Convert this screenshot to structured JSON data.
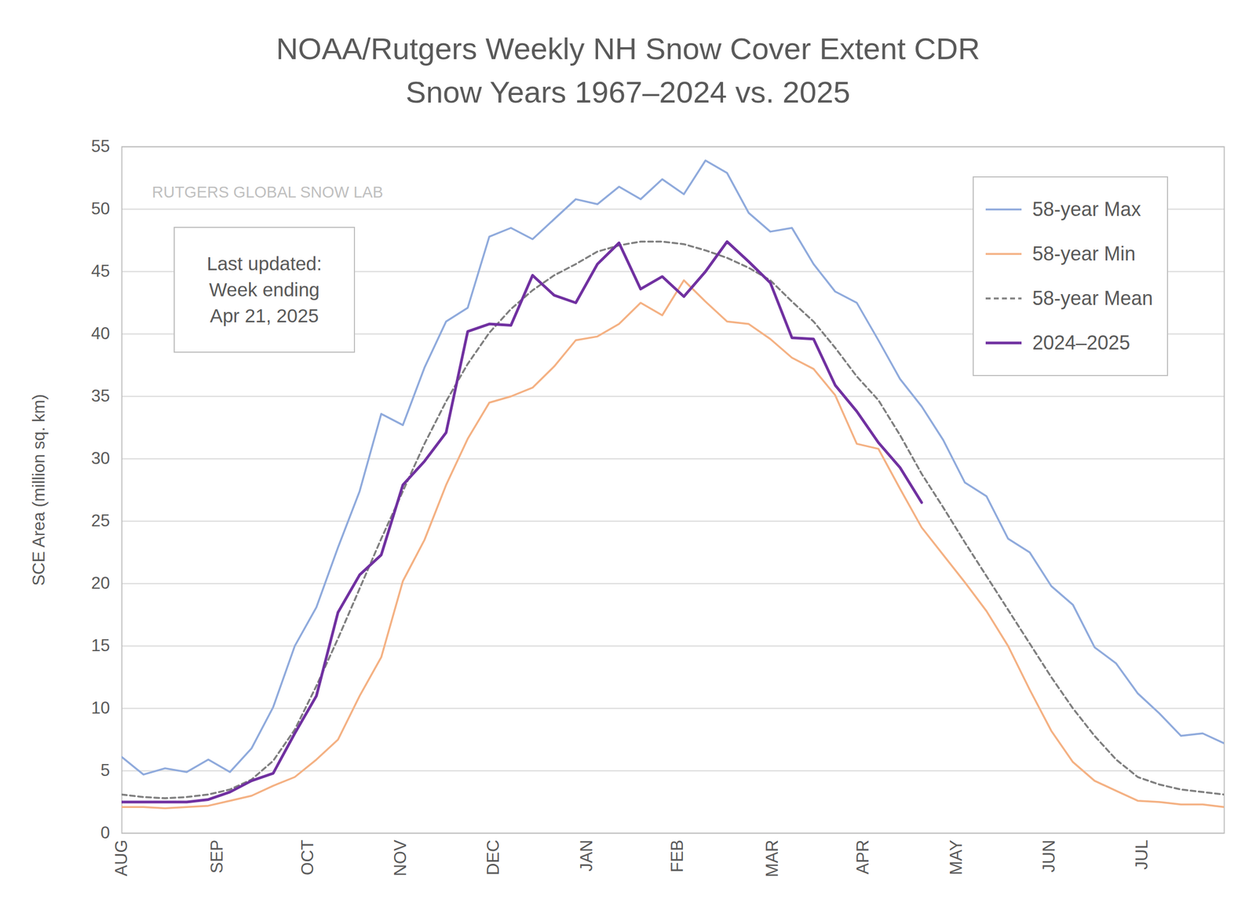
{
  "chart_data": {
    "type": "line",
    "title": "NOAA/Rutgers Weekly NH Snow Cover Extent CDR",
    "subtitle": "Snow Years 1967–2024 vs. 2025",
    "y_label": "SCE Area (million sq. km)",
    "annotations": [
      {
        "text": [
          "RUTGERS GLOBAL SNOW LAB"
        ]
      },
      {
        "text": [
          "Last updated:",
          "Week ending",
          "Apr 21, 2025"
        ]
      }
    ],
    "x": [
      0,
      1,
      2,
      3,
      4,
      5,
      6,
      7,
      8,
      9,
      10,
      11,
      12,
      13,
      14,
      15,
      16,
      17,
      18,
      19,
      20,
      21,
      22,
      23,
      24,
      25,
      26,
      27,
      28,
      29,
      30,
      31,
      32,
      33,
      34,
      35,
      36,
      37,
      38,
      39,
      40,
      41,
      42,
      43,
      44,
      45,
      46,
      47,
      48,
      49,
      50,
      51
    ],
    "xlim": [
      0,
      51
    ],
    "xticks": [
      {
        "value": 0,
        "label": "AUG"
      },
      {
        "value": 4.4,
        "label": "SEP"
      },
      {
        "value": 8.6,
        "label": "OCT"
      },
      {
        "value": 12.9,
        "label": "NOV"
      },
      {
        "value": 17.2,
        "label": "DEC"
      },
      {
        "value": 21.5,
        "label": "JAN"
      },
      {
        "value": 25.7,
        "label": "FEB"
      },
      {
        "value": 30.1,
        "label": "MAR"
      },
      {
        "value": 34.3,
        "label": "APR"
      },
      {
        "value": 38.6,
        "label": "MAY"
      },
      {
        "value": 42.9,
        "label": "JUN"
      },
      {
        "value": 47.2,
        "label": "JUL"
      }
    ],
    "ylim": [
      0,
      55
    ],
    "yticks": [
      0,
      5,
      10,
      15,
      20,
      25,
      30,
      35,
      40,
      45,
      50,
      55
    ],
    "grid": "y",
    "legend": "top-right",
    "series": [
      {
        "name": "58-year Max",
        "color": "#8faadc",
        "line_style": "solid",
        "values": [
          6.1,
          4.7,
          5.2,
          4.9,
          5.9,
          4.9,
          6.8,
          10.1,
          15.0,
          18.1,
          22.9,
          27.4,
          33.6,
          32.7,
          37.3,
          41.0,
          42.1,
          47.8,
          48.5,
          47.6,
          49.2,
          50.8,
          50.4,
          51.8,
          50.8,
          52.4,
          51.2,
          53.9,
          52.9,
          49.7,
          48.2,
          48.5,
          45.6,
          43.4,
          42.5,
          39.5,
          36.4,
          34.2,
          31.5,
          28.1,
          27.0,
          23.6,
          22.5,
          19.8,
          18.3,
          14.9,
          13.6,
          11.2,
          9.6,
          7.8,
          8.0,
          7.2
        ]
      },
      {
        "name": "58-year Min",
        "color": "#f4b183",
        "line_style": "solid",
        "values": [
          2.1,
          2.1,
          2.0,
          2.1,
          2.2,
          2.6,
          3.0,
          3.8,
          4.5,
          5.9,
          7.5,
          11.0,
          14.1,
          20.2,
          23.5,
          27.9,
          31.6,
          34.5,
          35.0,
          35.7,
          37.4,
          39.5,
          39.8,
          40.8,
          42.5,
          41.5,
          44.3,
          42.6,
          41.0,
          40.8,
          39.6,
          38.1,
          37.2,
          35.1,
          31.2,
          30.8,
          27.6,
          24.5,
          22.3,
          20.1,
          17.8,
          15.0,
          11.5,
          8.2,
          5.7,
          4.2,
          3.4,
          2.6,
          2.5,
          2.3,
          2.3,
          2.1
        ]
      },
      {
        "name": "58-year Mean",
        "color": "#7f7f7f",
        "line_style": "dashed",
        "values": [
          3.1,
          2.9,
          2.8,
          2.9,
          3.1,
          3.5,
          4.3,
          5.8,
          8.3,
          11.8,
          15.6,
          19.6,
          23.6,
          27.4,
          31.2,
          34.6,
          37.6,
          40.1,
          42.0,
          43.5,
          44.7,
          45.6,
          46.6,
          47.1,
          47.4,
          47.4,
          47.2,
          46.7,
          46.1,
          45.3,
          44.3,
          42.6,
          41.0,
          38.9,
          36.6,
          34.7,
          31.9,
          28.8,
          26.1,
          23.3,
          20.6,
          17.9,
          15.2,
          12.5,
          10.0,
          7.8,
          5.9,
          4.5,
          3.9,
          3.5,
          3.3,
          3.1
        ]
      },
      {
        "name": "2024–2025",
        "color": "#7030a0",
        "line_style": "solid",
        "values": [
          2.5,
          2.5,
          2.5,
          2.5,
          2.7,
          3.3,
          4.2,
          4.8,
          8.0,
          11.0,
          17.7,
          20.7,
          22.3,
          27.9,
          29.8,
          32.1,
          40.2,
          40.8,
          40.7,
          44.7,
          43.1,
          42.5,
          45.6,
          47.3,
          43.6,
          44.6,
          43.0,
          45.0,
          47.4,
          45.8,
          44.1,
          39.7,
          39.6,
          35.9,
          33.8,
          31.3,
          29.3,
          26.5,
          null,
          null,
          null,
          null,
          null,
          null,
          null,
          null,
          null,
          null,
          null,
          null,
          null,
          null
        ]
      }
    ]
  }
}
